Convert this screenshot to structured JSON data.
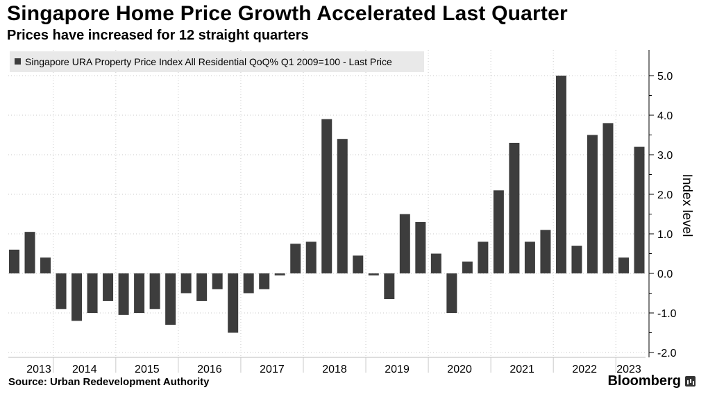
{
  "header": {
    "title": "Singapore Home Price Growth Accelerated Last Quarter",
    "subtitle": "Prices have increased for 12 straight quarters"
  },
  "footer": {
    "source": "Source:  Urban Redevelopment Authority",
    "brand": "Bloomberg",
    "brand_icon": "bloomberg-chart-icon"
  },
  "chart_data": {
    "type": "bar",
    "title": "Singapore Home Price Growth Accelerated Last Quarter",
    "subtitle": "Prices have increased for 12 straight quarters",
    "legend": "Singapore URA Property Price Index All Residential QoQ% Q1 2009=100 - Last Price",
    "legend_position": "top-left",
    "ylabel": "Index level",
    "xlabel": "",
    "ylim": [
      -2.2,
      5.6
    ],
    "yticks": [
      5.0,
      4.0,
      3.0,
      2.0,
      1.0,
      0.0,
      -1.0,
      -2.0
    ],
    "ytick_labels": [
      "5.0",
      "4.0",
      "3.0",
      "2.0",
      "1.0",
      "0.0",
      "-1.0",
      "-2.0"
    ],
    "y_axis_side": "right",
    "grid": true,
    "bar_color": "#3d3d3d",
    "year_labels": [
      "2013",
      "2014",
      "2015",
      "2016",
      "2017",
      "2018",
      "2019",
      "2020",
      "2021",
      "2022",
      "2023"
    ],
    "categories": [
      "2013 Q1",
      "2013 Q2",
      "2013 Q3",
      "2013 Q4",
      "2014 Q1",
      "2014 Q2",
      "2014 Q3",
      "2014 Q4",
      "2015 Q1",
      "2015 Q2",
      "2015 Q3",
      "2015 Q4",
      "2016 Q1",
      "2016 Q2",
      "2016 Q3",
      "2016 Q4",
      "2017 Q1",
      "2017 Q2",
      "2017 Q3",
      "2017 Q4",
      "2018 Q1",
      "2018 Q2",
      "2018 Q3",
      "2018 Q4",
      "2019 Q1",
      "2019 Q2",
      "2019 Q3",
      "2019 Q4",
      "2020 Q1",
      "2020 Q2",
      "2020 Q3",
      "2020 Q4",
      "2021 Q1",
      "2021 Q2",
      "2021 Q3",
      "2021 Q4",
      "2022 Q1",
      "2022 Q2",
      "2022 Q3",
      "2022 Q4",
      "2023 Q1"
    ],
    "values": [
      0.6,
      1.05,
      0.4,
      -0.9,
      -1.2,
      -1.0,
      -0.7,
      -1.05,
      -1.0,
      -0.9,
      -1.3,
      -0.5,
      -0.7,
      -0.4,
      -1.5,
      -0.5,
      -0.4,
      -0.05,
      0.75,
      0.8,
      3.9,
      3.4,
      0.45,
      -0.05,
      -0.65,
      1.5,
      1.3,
      0.5,
      -1.0,
      0.3,
      0.8,
      2.1,
      3.3,
      0.8,
      1.1,
      5.0,
      0.7,
      3.5,
      3.8,
      0.4,
      3.2
    ]
  }
}
